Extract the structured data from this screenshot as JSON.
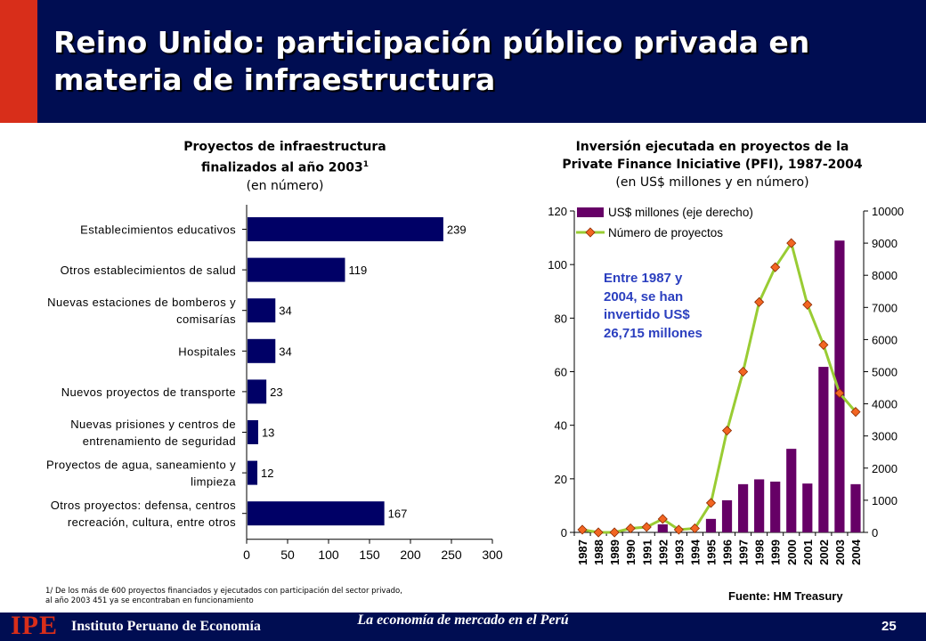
{
  "header": {
    "title_line1": "Reino Unido: participación público privada en",
    "title_line2": "materia de infraestructura"
  },
  "left_chart_title": {
    "line1": "Proyectos de infraestructura",
    "line2": "finalizados al año 2003",
    "superscript": "1",
    "line3": "(en número)"
  },
  "right_chart_title": {
    "line1": "Inversión ejecutada en proyectos de la",
    "line2": "Private Finance Iniciative (PFI), 1987-2004",
    "line3": "(en US$ millones y en número)"
  },
  "annotation": {
    "line1": "Entre 1987 y",
    "line2": "2004, se han",
    "line3": "invertido US$",
    "line4": "26,715 millones"
  },
  "footnote": {
    "line1": "1/ De los más de 600 proyectos financiados y ejecutados con participación del sector privado,",
    "line2": "al año 2003 451 ya se encontraban en funcionamiento"
  },
  "source": "Fuente: HM Treasury",
  "footer": {
    "logo": "IPE",
    "institution": "Instituto Peruano de Economía",
    "slogan": "La economía de mercado en el Perú",
    "page_number": "25"
  },
  "colors": {
    "header_bg": "#000d52",
    "accent_red": "#d82e1a",
    "bar_navy": "#000066",
    "bar_purple": "#660066",
    "line_green": "#99cc33",
    "marker_orange": "#f26522",
    "annotation_blue": "#2b3fbf"
  },
  "chart_data": [
    {
      "type": "bar",
      "orientation": "horizontal",
      "categories": [
        [
          "Establecimientos educativos"
        ],
        [
          "Otros establecimientos de salud"
        ],
        [
          "Nuevas estaciones de bomberos y",
          "comisarías"
        ],
        [
          "Hospitales"
        ],
        [
          "Nuevos proyectos de transporte"
        ],
        [
          "Nuevas prisiones y centros de",
          "entrenamiento de seguridad"
        ],
        [
          "Proyectos de agua, saneamiento y",
          "limpieza"
        ],
        [
          "Otros proyectos: defensa, centros",
          "recreación, cultura, entre otros"
        ]
      ],
      "values": [
        239,
        119,
        34,
        34,
        23,
        13,
        12,
        167
      ],
      "xlim": [
        0,
        300
      ],
      "xticks": [
        0,
        50,
        100,
        150,
        200,
        250,
        300
      ],
      "data_labels": true,
      "grid": false
    },
    {
      "type": "bar+line",
      "categories": [
        "1987",
        "1988",
        "1989",
        "1990",
        "1991",
        "1992",
        "1993",
        "1994",
        "1995",
        "1996",
        "1997",
        "1998",
        "1999",
        "2000",
        "2001",
        "2002",
        "2003",
        "2004"
      ],
      "series": [
        {
          "name": "US$ millones (eje derecho)",
          "type": "bar",
          "axis": "right",
          "values": [
            0,
            0,
            0,
            0,
            0,
            250,
            0,
            0,
            420,
            1000,
            1500,
            1650,
            1580,
            2600,
            1520,
            5150,
            9080,
            1500
          ]
        },
        {
          "name": "Número de proyectos",
          "type": "line",
          "axis": "left",
          "values": [
            1,
            0,
            0,
            1.5,
            2,
            5,
            1,
            1.5,
            11,
            38,
            60,
            86,
            99,
            108,
            85,
            70,
            52,
            45
          ]
        }
      ],
      "ylim_left": [
        0,
        120
      ],
      "yticks_left": [
        0,
        20,
        40,
        60,
        80,
        100,
        120
      ],
      "ylim_right": [
        0,
        10000
      ],
      "yticks_right": [
        0,
        1000,
        2000,
        3000,
        4000,
        5000,
        6000,
        7000,
        8000,
        9000,
        10000
      ],
      "legend": "top-left",
      "grid": false
    }
  ]
}
